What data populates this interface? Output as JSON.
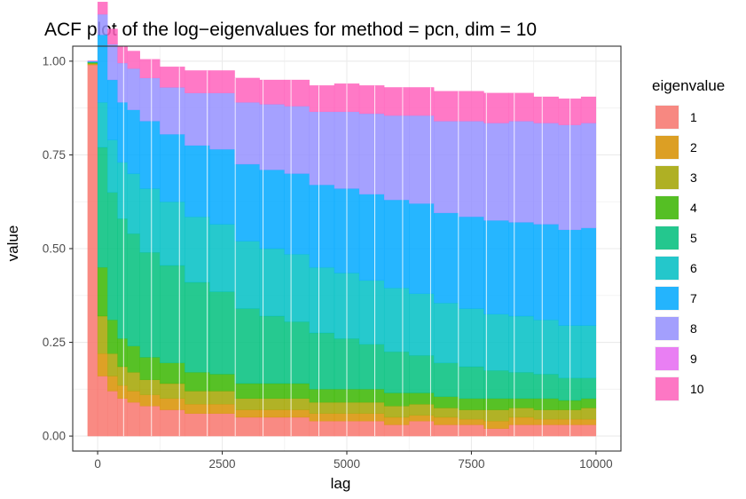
{
  "chart_data": {
    "type": "area",
    "stacked": true,
    "style": "step",
    "title": "ACF plot of the log−eigenvalues for method = pcn, dim = 10",
    "xlabel": "lag",
    "ylabel": "value",
    "xlim": [
      -500,
      10500
    ],
    "ylim": [
      -0.04,
      1.04
    ],
    "x_ticks": [
      0,
      2500,
      5000,
      7500,
      10000
    ],
    "x_tick_labels": [
      "0",
      "2500",
      "5000",
      "7500",
      "10000"
    ],
    "y_ticks": [
      0.0,
      0.25,
      0.5,
      0.75,
      1.0
    ],
    "y_tick_labels": [
      "0.00",
      "0.25",
      "0.50",
      "0.75",
      "1.00"
    ],
    "grid": true,
    "legend": {
      "title": "eigenvalue",
      "placement": "right"
    },
    "x": [
      -100,
      100,
      300,
      500,
      700,
      1000,
      1500,
      2000,
      2500,
      3000,
      3500,
      4000,
      4500,
      5000,
      5500,
      6000,
      6500,
      7000,
      7500,
      8000,
      8500,
      9000,
      9500,
      9900
    ],
    "series": [
      {
        "name": "1",
        "color": "#F8766D",
        "values": [
          0.99,
          0.16,
          0.12,
          0.1,
          0.09,
          0.08,
          0.07,
          0.06,
          0.06,
          0.05,
          0.05,
          0.05,
          0.04,
          0.04,
          0.04,
          0.03,
          0.04,
          0.03,
          0.03,
          0.02,
          0.03,
          0.03,
          0.03,
          0.03
        ]
      },
      {
        "name": "2",
        "color": "#D89000",
        "values": [
          0.002,
          0.06,
          0.04,
          0.035,
          0.03,
          0.03,
          0.03,
          0.025,
          0.025,
          0.02,
          0.02,
          0.02,
          0.02,
          0.02,
          0.02,
          0.02,
          0.015,
          0.02,
          0.015,
          0.02,
          0.02,
          0.015,
          0.015,
          0.015
        ]
      },
      {
        "name": "3",
        "color": "#A3A500",
        "values": [
          0.002,
          0.1,
          0.06,
          0.05,
          0.05,
          0.04,
          0.04,
          0.035,
          0.035,
          0.03,
          0.03,
          0.03,
          0.03,
          0.03,
          0.03,
          0.03,
          0.03,
          0.025,
          0.025,
          0.03,
          0.025,
          0.025,
          0.025,
          0.03
        ]
      },
      {
        "name": "4",
        "color": "#39B600",
        "values": [
          0.002,
          0.13,
          0.09,
          0.075,
          0.07,
          0.06,
          0.055,
          0.05,
          0.045,
          0.04,
          0.04,
          0.04,
          0.035,
          0.035,
          0.035,
          0.035,
          0.03,
          0.03,
          0.03,
          0.03,
          0.025,
          0.03,
          0.025,
          0.025
        ]
      },
      {
        "name": "5",
        "color": "#00BF7D",
        "values": [
          0.001,
          0.32,
          0.34,
          0.32,
          0.3,
          0.28,
          0.26,
          0.24,
          0.22,
          0.2,
          0.18,
          0.165,
          0.15,
          0.135,
          0.12,
          0.11,
          0.1,
          0.09,
          0.085,
          0.075,
          0.07,
          0.065,
          0.06,
          0.055
        ]
      },
      {
        "name": "6",
        "color": "#00BFC4",
        "values": [
          0.001,
          0.12,
          0.14,
          0.15,
          0.16,
          0.17,
          0.17,
          0.175,
          0.18,
          0.18,
          0.18,
          0.18,
          0.175,
          0.175,
          0.17,
          0.17,
          0.165,
          0.16,
          0.155,
          0.15,
          0.15,
          0.145,
          0.14,
          0.14
        ]
      },
      {
        "name": "7",
        "color": "#00A9FF",
        "values": [
          0.001,
          0.18,
          0.16,
          0.16,
          0.17,
          0.18,
          0.18,
          0.19,
          0.2,
          0.205,
          0.21,
          0.215,
          0.22,
          0.225,
          0.23,
          0.235,
          0.24,
          0.24,
          0.245,
          0.25,
          0.25,
          0.255,
          0.255,
          0.26
        ]
      },
      {
        "name": "8",
        "color": "#9590FF",
        "values": [
          0.001,
          0.055,
          0.095,
          0.105,
          0.11,
          0.115,
          0.125,
          0.14,
          0.15,
          0.165,
          0.175,
          0.18,
          0.195,
          0.205,
          0.215,
          0.225,
          0.235,
          0.245,
          0.255,
          0.26,
          0.27,
          0.27,
          0.28,
          0.28
        ]
      },
      {
        "name": "9",
        "color": "#E76BF3",
        "values": [
          0.0005,
          0.0,
          0.0,
          0.0,
          0.0,
          0.0,
          0.0,
          0.0,
          0.0,
          0.0,
          0.0,
          0.0,
          0.0,
          0.0,
          0.0,
          0.0,
          0.0,
          0.0,
          0.0,
          0.0,
          0.0,
          0.0,
          0.0,
          0.0
        ]
      },
      {
        "name": "10",
        "color": "#FF62BC",
        "values": [
          0.0005,
          0.033,
          0.041,
          0.044,
          0.047,
          0.05,
          0.055,
          0.06,
          0.06,
          0.065,
          0.065,
          0.07,
          0.07,
          0.075,
          0.075,
          0.075,
          0.075,
          0.08,
          0.08,
          0.08,
          0.075,
          0.07,
          0.07,
          0.07
        ]
      }
    ]
  }
}
